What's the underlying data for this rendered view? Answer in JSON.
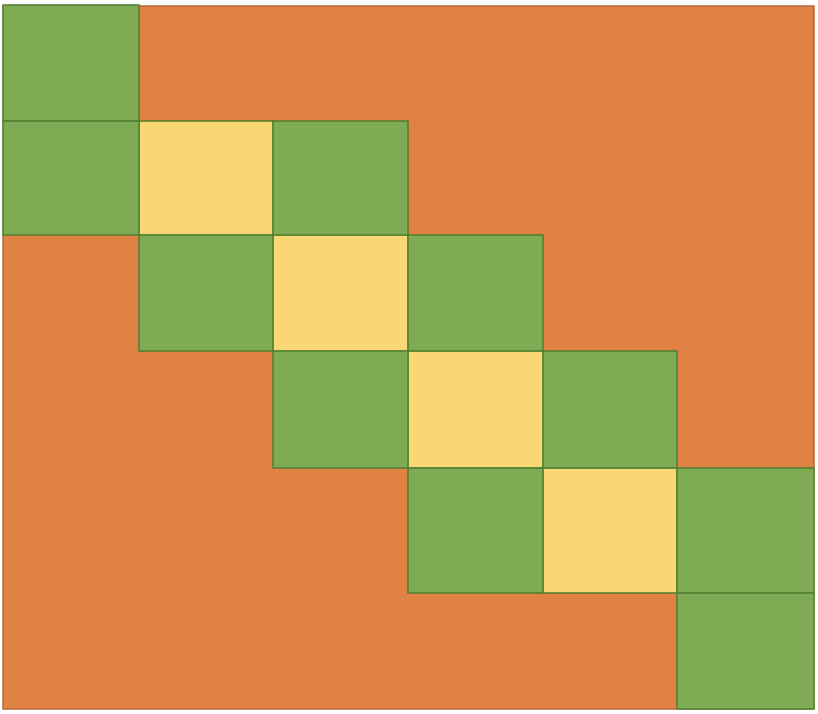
{
  "colors": {
    "background": "#E08243",
    "background_edge": "#B7663A",
    "outer_cell": "#7FAB55",
    "outer_cell_edge": "#4F7F2E",
    "inner_cell": "#F9D772",
    "inner_cell_edge": "#4F7F2E"
  },
  "grid": {
    "rows": 6,
    "columns": 6
  },
  "cells": [
    {
      "row": 0,
      "col": 0,
      "kind": "outer"
    },
    {
      "row": 1,
      "col": 0,
      "kind": "outer"
    },
    {
      "row": 1,
      "col": 1,
      "kind": "inner"
    },
    {
      "row": 1,
      "col": 2,
      "kind": "outer"
    },
    {
      "row": 2,
      "col": 1,
      "kind": "outer"
    },
    {
      "row": 2,
      "col": 2,
      "kind": "inner"
    },
    {
      "row": 2,
      "col": 3,
      "kind": "outer"
    },
    {
      "row": 3,
      "col": 2,
      "kind": "outer"
    },
    {
      "row": 3,
      "col": 3,
      "kind": "inner"
    },
    {
      "row": 3,
      "col": 4,
      "kind": "outer"
    },
    {
      "row": 4,
      "col": 3,
      "kind": "outer"
    },
    {
      "row": 4,
      "col": 4,
      "kind": "inner"
    },
    {
      "row": 4,
      "col": 5,
      "kind": "outer"
    },
    {
      "row": 5,
      "col": 5,
      "kind": "outer"
    }
  ]
}
